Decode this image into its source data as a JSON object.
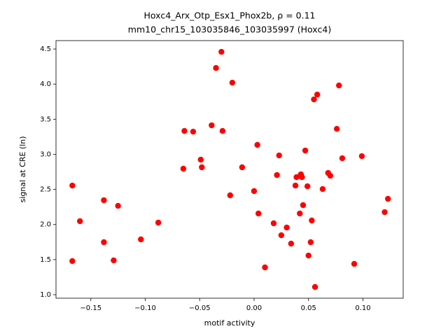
{
  "chart_data": {
    "type": "scatter",
    "title": "Hoxc4_Arx_Otp_Esx1_Phox2b, ρ = 0.11",
    "subtitle": "mm10_chr15_103035846_103035997 (Hoxc4)",
    "x_label": "motif activity",
    "y_label": "signal at CRE (ln)",
    "color": "#ff0000",
    "xlim": [
      -0.182,
      0.137
    ],
    "ylim": [
      0.95,
      4.62
    ],
    "xticks": [
      {
        "value": -0.15,
        "label": "−0.15"
      },
      {
        "value": -0.1,
        "label": "−0.10"
      },
      {
        "value": -0.05,
        "label": "−0.05"
      },
      {
        "value": 0,
        "label": "0.00"
      },
      0.05,
      {
        "value": 0.1,
        "label": "0.10"
      }
    ],
    "yticks": [
      {
        "value": 1,
        "label": "1.0"
      },
      1.5,
      {
        "value": 2,
        "label": "2.0"
      },
      2.5,
      {
        "value": 3,
        "label": "3.0"
      },
      3.5,
      {
        "value": 4,
        "label": "4.0"
      },
      4.5
    ],
    "x": [
      -0.167,
      -0.167,
      -0.16,
      -0.138,
      -0.138,
      -0.129,
      -0.125,
      -0.104,
      -0.088,
      -0.065,
      -0.064,
      -0.056,
      -0.049,
      -0.048,
      -0.039,
      -0.035,
      -0.03,
      -0.029,
      -0.022,
      -0.02,
      -0.011,
      0.0,
      0.003,
      0.004,
      0.01,
      0.018,
      0.021,
      0.023,
      0.025,
      0.03,
      0.034,
      0.038,
      0.039,
      0.042,
      0.043,
      0.044,
      0.045,
      0.047,
      0.049,
      0.05,
      0.052,
      0.053,
      0.055,
      0.056,
      0.058,
      0.063,
      0.068,
      0.07,
      0.076,
      0.078,
      0.081,
      0.092,
      0.099,
      0.12,
      0.123
    ],
    "values": [
      2.555,
      1.479,
      2.047,
      2.346,
      1.748,
      1.489,
      2.266,
      1.788,
      2.027,
      2.795,
      3.333,
      3.323,
      2.924,
      2.815,
      3.413,
      4.23,
      4.46,
      3.333,
      2.416,
      4.021,
      2.815,
      2.476,
      3.134,
      2.157,
      1.389,
      2.017,
      2.705,
      2.984,
      1.847,
      1.957,
      1.728,
      2.555,
      2.675,
      2.157,
      2.715,
      2.675,
      2.276,
      3.054,
      2.545,
      1.558,
      1.748,
      2.057,
      3.782,
      1.11,
      3.851,
      2.505,
      2.735,
      2.695,
      3.363,
      3.981,
      2.944,
      1.439,
      2.974,
      2.176,
      2.366
    ]
  }
}
